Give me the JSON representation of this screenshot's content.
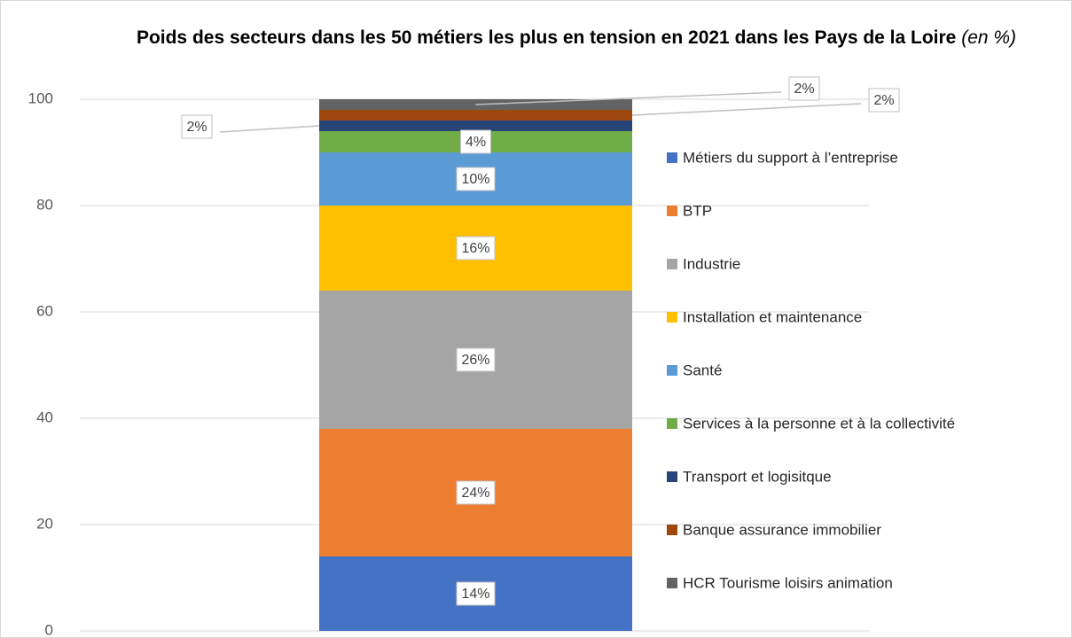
{
  "chart_data": {
    "type": "stacked_bar",
    "title": "Poids des secteurs dans les 50 métiers les plus en tension en 2021 dans les Pays de la Loire",
    "title_suffix": "(en %)",
    "categories": [
      null
    ],
    "series": [
      {
        "name": "Métiers du support à l’entreprise",
        "color": "#4472c4",
        "values": [
          14
        ],
        "value_labels": [
          "14%"
        ]
      },
      {
        "name": "BTP",
        "color": "#ed7d31",
        "values": [
          24
        ],
        "value_labels": [
          "24%"
        ]
      },
      {
        "name": "Industrie",
        "color": "#a5a5a5",
        "values": [
          26
        ],
        "value_labels": [
          "26%"
        ]
      },
      {
        "name": "Installation et maintenance",
        "color": "#ffc000",
        "values": [
          16
        ],
        "value_labels": [
          "16%"
        ]
      },
      {
        "name": "Santé",
        "color": "#5b9bd5",
        "values": [
          10
        ],
        "value_labels": [
          "10%"
        ]
      },
      {
        "name": "Services à la personne et à la collectivité",
        "color": "#70ad47",
        "values": [
          4
        ],
        "value_labels": [
          "4%"
        ]
      },
      {
        "name": "Transport et logisitque",
        "color": "#264478",
        "values": [
          2
        ],
        "value_labels": [
          "2%"
        ]
      },
      {
        "name": "Banque assurance immobilier",
        "color": "#9e480e",
        "values": [
          2
        ],
        "value_labels": [
          "2%"
        ]
      },
      {
        "name": "HCR Tourisme loisirs animation",
        "color": "#636363",
        "values": [
          2
        ],
        "value_labels": [
          "2%"
        ]
      }
    ],
    "ylim": [
      0,
      100
    ],
    "yticks": [
      0,
      20,
      40,
      60,
      80,
      100
    ],
    "grid": true,
    "legend": "right"
  }
}
